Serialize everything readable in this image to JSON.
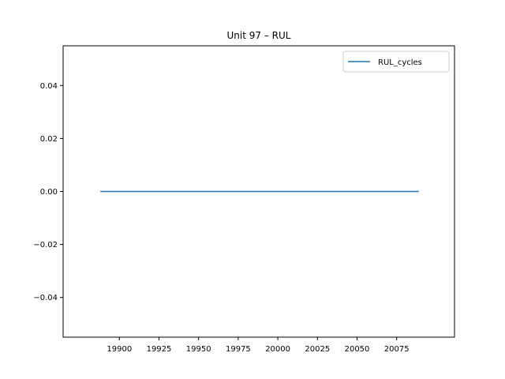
{
  "chart_data": {
    "type": "line",
    "title": "Unit 97  –  RUL",
    "xlabel": "",
    "ylabel": "",
    "xlim": [
      19864.5,
      20111.5
    ],
    "ylim": [
      -0.055,
      0.055
    ],
    "x_ticks": [
      19900,
      19925,
      19950,
      19975,
      20000,
      20025,
      20050,
      20075
    ],
    "y_ticks": [
      -0.04,
      -0.02,
      0.0,
      0.02,
      0.04
    ],
    "y_tick_labels": [
      "−0.04",
      "−0.02",
      "0.00",
      "0.02",
      "0.04"
    ],
    "grid": false,
    "legend": "upper right",
    "series": [
      {
        "name": "RUL_cycles",
        "color": "#1f77b4",
        "x": [
          19888,
          20089
        ],
        "y": [
          0,
          0
        ]
      }
    ]
  }
}
